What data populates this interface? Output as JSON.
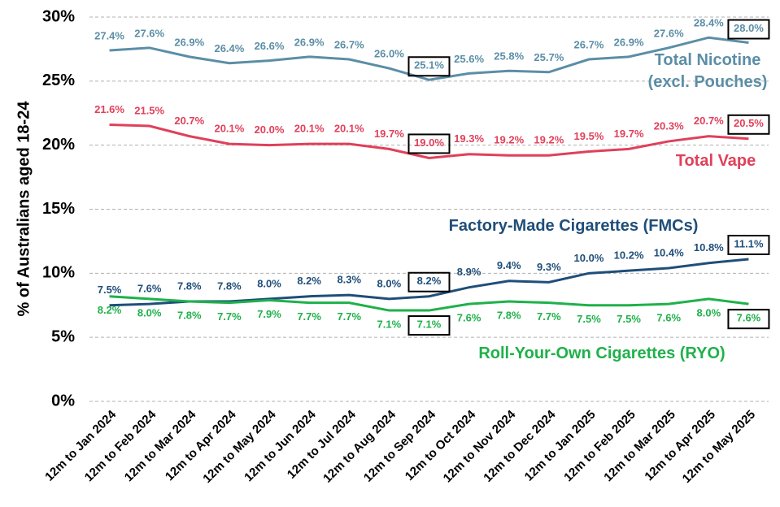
{
  "chart_data": {
    "type": "line",
    "y_axis_label": "% of Australians aged 18-24",
    "categories": [
      "12m to Jan 2024",
      "12m to Feb 2024",
      "12m to Mar 2024",
      "12m to Apr 2024",
      "12m to May 2024",
      "12m to Jun 2024",
      "12m to Jul 2024",
      "12m to Aug 2024",
      "12m to Sep 2024",
      "12m to Oct 2024",
      "12m to Nov 2024",
      "12m to Dec 2024",
      "12m to Jan 2025",
      "12m to Feb 2025",
      "12m to Mar 2025",
      "12m to Apr 2025",
      "12m to May 2025"
    ],
    "series": [
      {
        "name": "Total Nicotine (excl. Pouches)",
        "color": "#5b8ea6",
        "label_color": "#5b8ea6",
        "values": [
          27.4,
          27.6,
          26.9,
          26.4,
          26.6,
          26.9,
          26.7,
          26.0,
          25.1,
          25.6,
          25.8,
          25.7,
          26.7,
          26.9,
          27.6,
          28.4,
          28.0
        ],
        "value_labels": [
          "27.4%",
          "27.6%",
          "26.9%",
          "26.4%",
          "26.6%",
          "26.9%",
          "26.7%",
          "26.0%",
          "25.1%",
          "25.6%",
          "25.8%",
          "25.7%",
          "26.7%",
          "26.9%",
          "27.6%",
          "28.4%",
          "28.0%"
        ]
      },
      {
        "name": "Total Vape",
        "color": "#e0405a",
        "label_color": "#e0405a",
        "values": [
          21.6,
          21.5,
          20.7,
          20.1,
          20.0,
          20.1,
          20.1,
          19.7,
          19.0,
          19.3,
          19.2,
          19.2,
          19.5,
          19.7,
          20.3,
          20.7,
          20.5
        ],
        "value_labels": [
          "21.6%",
          "21.5%",
          "20.7%",
          "20.1%",
          "20.0%",
          "20.1%",
          "20.1%",
          "19.7%",
          "19.0%",
          "19.3%",
          "19.2%",
          "19.2%",
          "19.5%",
          "19.7%",
          "20.3%",
          "20.7%",
          "20.5%"
        ]
      },
      {
        "name": "Factory-Made Cigarettes (FMCs)",
        "color": "#1f4e79",
        "label_color": "#1f4e79",
        "values": [
          7.5,
          7.6,
          7.8,
          7.8,
          8.0,
          8.2,
          8.3,
          8.0,
          8.2,
          8.9,
          9.4,
          9.3,
          10.0,
          10.2,
          10.4,
          10.8,
          11.1
        ],
        "value_labels": [
          "7.5%",
          "7.6%",
          "7.8%",
          "7.8%",
          "8.0%",
          "8.2%",
          "8.3%",
          "8.0%",
          "8.2%",
          "8.9%",
          "9.4%",
          "9.3%",
          "10.0%",
          "10.2%",
          "10.4%",
          "10.8%",
          "11.1%"
        ]
      },
      {
        "name": "Roll-Your-Own Cigarettes (RYO)",
        "color": "#1fb14a",
        "label_color": "#1fb14a",
        "values": [
          8.2,
          8.0,
          7.8,
          7.7,
          7.9,
          7.7,
          7.7,
          7.1,
          7.1,
          7.6,
          7.8,
          7.7,
          7.5,
          7.5,
          7.6,
          8.0,
          7.6
        ],
        "value_labels": [
          "8.2%",
          "8.0%",
          "7.8%",
          "7.7%",
          "7.9%",
          "7.7%",
          "7.7%",
          "7.1%",
          "7.1%",
          "7.6%",
          "7.8%",
          "7.7%",
          "7.5%",
          "7.5%",
          "7.6%",
          "8.0%",
          "7.6%"
        ]
      }
    ],
    "boxed_points": [
      8,
      16
    ],
    "ylim": [
      0,
      30
    ],
    "yticks": [
      {
        "value": 0,
        "label": "0%"
      },
      {
        "value": 5,
        "label": "5%"
      },
      {
        "value": 10,
        "label": "10%"
      },
      {
        "value": 15,
        "label": "15%"
      },
      {
        "value": 20,
        "label": "20%"
      },
      {
        "value": 25,
        "label": "25%"
      },
      {
        "value": 30,
        "label": "30%"
      }
    ],
    "grid": true
  }
}
